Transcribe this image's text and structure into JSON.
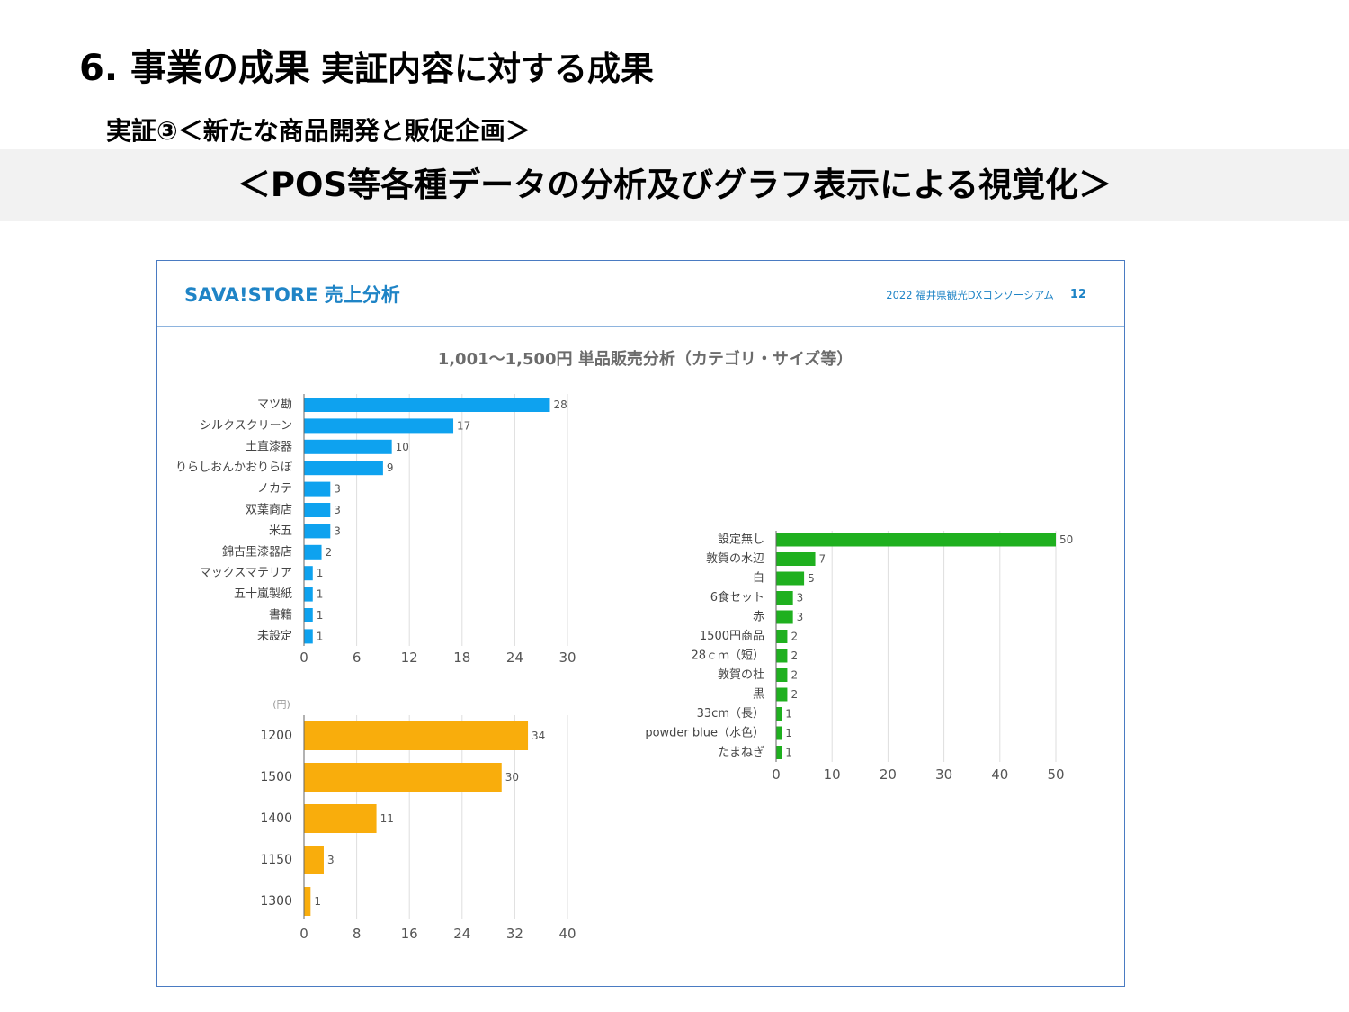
{
  "slide": {
    "title_main": "6. 事業の成果",
    "title_sub": "実証内容に対する成果",
    "subtitle": "実証③＜新たな商品開発と販促企画＞",
    "banner": "＜POS等各種データの分析及びグラフ表示による視覚化＞"
  },
  "panel": {
    "title": "SAVA!STORE 売上分析",
    "organization": "2022 福井県観光DXコンソーシアム",
    "page_number": "12",
    "chart_heading": "1,001～1,500円 単品販売分析（カテゴリ・サイズ等）"
  },
  "colors": {
    "panel_accent": "#1f84c6",
    "banner_background": "#f2f2f2"
  },
  "chart_data": [
    {
      "type": "bar",
      "categories": [
        "マツ勘",
        "シルクスクリーン",
        "土直漆器",
        "りらしおんかおりらぼ",
        "ノカテ",
        "双葉商店",
        "米五",
        "錦古里漆器店",
        "マックスマテリア",
        "五十嵐製紙",
        "書籍",
        "未設定"
      ],
      "values": [
        28,
        17,
        10,
        9,
        3,
        3,
        3,
        2,
        1,
        1,
        1,
        1
      ],
      "xlim": [
        0,
        30
      ],
      "xticks": [
        0,
        6,
        12,
        18,
        24,
        30
      ],
      "color": "#0ea2ef"
    },
    {
      "type": "bar",
      "unit_label": "(円)",
      "categories": [
        "1200",
        "1500",
        "1400",
        "1150",
        "1300"
      ],
      "values": [
        34,
        30,
        11,
        3,
        1
      ],
      "xlim": [
        0,
        40
      ],
      "xticks": [
        0,
        8,
        16,
        24,
        32,
        40
      ],
      "color": "#f9ad0c"
    },
    {
      "type": "bar",
      "categories": [
        "設定無し",
        "敦賀の水辺",
        "白",
        "6食セット",
        "赤",
        "1500円商品",
        "28ｃｍ（短）",
        "敦賀の杜",
        "黒",
        "33cm（長）",
        "powder blue（水色）",
        "たまねぎ"
      ],
      "values": [
        50,
        7,
        5,
        3,
        3,
        2,
        2,
        2,
        2,
        1,
        1,
        1
      ],
      "xlim": [
        0,
        50
      ],
      "xticks": [
        0,
        10,
        20,
        30,
        40,
        50
      ],
      "color": "#1fb01f"
    }
  ]
}
